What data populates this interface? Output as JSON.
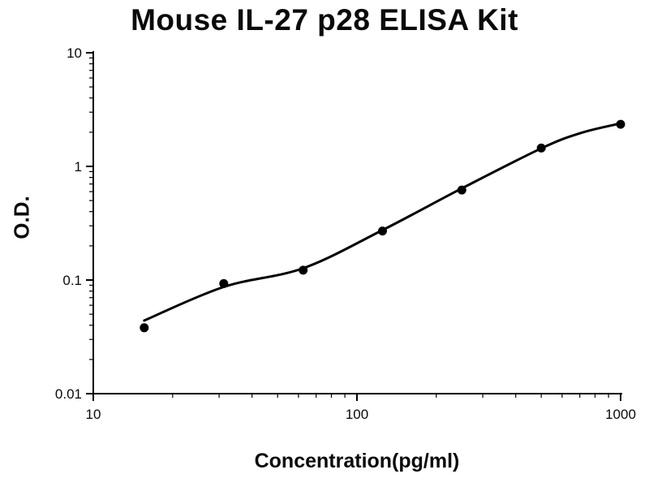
{
  "chart_data": {
    "type": "scatter",
    "title": "Mouse IL-27 p28 ELISA Kit",
    "xlabel": "Concentration(pg/ml)",
    "ylabel": "O.D.",
    "x_scale": "log",
    "y_scale": "log",
    "xlim": [
      10,
      1000
    ],
    "ylim": [
      0.01,
      10
    ],
    "x_ticks": [
      10,
      100,
      1000
    ],
    "x_tick_labels": [
      "10",
      "100",
      "1000"
    ],
    "y_ticks": [
      0.01,
      0.1,
      1,
      10
    ],
    "y_tick_labels": [
      "0.01",
      "0.1",
      "1",
      "10"
    ],
    "grid": false,
    "legend": "none",
    "points": {
      "name": "standard-curve-points",
      "x": [
        15.6,
        31.25,
        62.5,
        125,
        250,
        500,
        1000
      ],
      "y": [
        0.038,
        0.093,
        0.122,
        0.27,
        0.62,
        1.45,
        2.35
      ]
    },
    "curve": {
      "name": "4pl-fit-curve",
      "x": [
        15.6,
        31.25,
        62.5,
        125,
        250,
        500,
        707,
        1000
      ],
      "y": [
        0.044,
        0.087,
        0.127,
        0.275,
        0.64,
        1.44,
        1.97,
        2.39
      ]
    },
    "colors": {
      "axis": "#000000",
      "points": "#000000",
      "curve": "#000000",
      "text": "#0a0a0a",
      "background": "#ffffff"
    }
  }
}
